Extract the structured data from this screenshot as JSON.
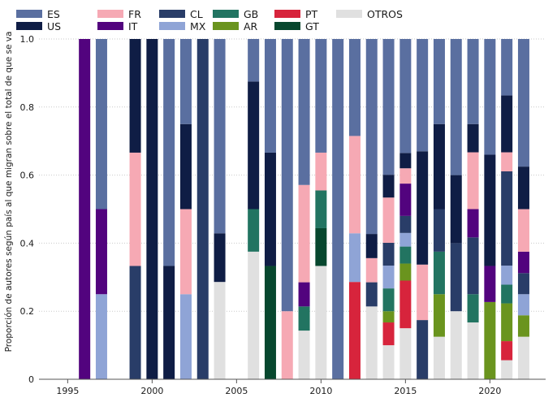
{
  "chart_data": {
    "type": "bar",
    "stacked": true,
    "orientation": "vertical",
    "ylabel": "Proporción de autores según país al que migran sobre el total de que se va",
    "xlabel": "",
    "xlim": [
      1993.3,
      2023.3
    ],
    "ylim": [
      0,
      1.0
    ],
    "x_ticks": [
      1995,
      2000,
      2005,
      2010,
      2015,
      2020
    ],
    "y_ticks": [
      0,
      0.2,
      0.4,
      0.6,
      0.8,
      1.0
    ],
    "y_tick_labels": [
      "0",
      "0.2",
      "0.4",
      "0.6",
      "0.8",
      "1.0"
    ],
    "grid": "horizontal dotted",
    "legend_position": "top",
    "legend": [
      {
        "key": "ES",
        "label": "ES",
        "color": "#5a6fa0"
      },
      {
        "key": "US",
        "label": "US",
        "color": "#0f1d45"
      },
      {
        "key": "FR",
        "label": "FR",
        "color": "#f6a9b4"
      },
      {
        "key": "IT",
        "label": "IT",
        "color": "#52037e"
      },
      {
        "key": "CL",
        "label": "CL",
        "color": "#293d68"
      },
      {
        "key": "MX",
        "label": "MX",
        "color": "#8fa4d6"
      },
      {
        "key": "GB",
        "label": "GB",
        "color": "#227461"
      },
      {
        "key": "AR",
        "label": "AR",
        "color": "#6a941e"
      },
      {
        "key": "PT",
        "label": "PT",
        "color": "#d7243c"
      },
      {
        "key": "GT",
        "label": "GT",
        "color": "#07472e"
      },
      {
        "key": "OTROS",
        "label": "OTROS",
        "color": "#e0e0e0"
      }
    ],
    "bars": [
      {
        "x": 1996,
        "segments": [
          [
            "IT",
            1.0
          ]
        ]
      },
      {
        "x": 1997,
        "segments": [
          [
            "MX",
            0.25
          ],
          [
            "IT",
            0.25
          ],
          [
            "ES",
            0.5
          ]
        ]
      },
      {
        "x": 1999,
        "segments": [
          [
            "CL",
            0.333
          ],
          [
            "FR",
            0.333
          ],
          [
            "US",
            0.334
          ]
        ]
      },
      {
        "x": 2000,
        "segments": [
          [
            "US",
            1.0
          ]
        ]
      },
      {
        "x": 2001,
        "segments": [
          [
            "US",
            0.333
          ],
          [
            "ES",
            0.667
          ]
        ]
      },
      {
        "x": 2002,
        "segments": [
          [
            "MX",
            0.25
          ],
          [
            "FR",
            0.25
          ],
          [
            "US",
            0.25
          ],
          [
            "ES",
            0.25
          ]
        ]
      },
      {
        "x": 2003,
        "segments": [
          [
            "CL",
            1.0
          ]
        ]
      },
      {
        "x": 2004,
        "segments": [
          [
            "OTROS",
            0.286
          ],
          [
            "US",
            0.143
          ],
          [
            "ES",
            0.571
          ]
        ]
      },
      {
        "x": 2006,
        "segments": [
          [
            "OTROS",
            0.375
          ],
          [
            "GB",
            0.125
          ],
          [
            "US",
            0.375
          ],
          [
            "ES",
            0.125
          ]
        ]
      },
      {
        "x": 2007,
        "segments": [
          [
            "GT",
            0.333
          ],
          [
            "US",
            0.333
          ],
          [
            "ES",
            0.334
          ]
        ]
      },
      {
        "x": 2008,
        "segments": [
          [
            "FR",
            0.2
          ],
          [
            "ES",
            0.8
          ]
        ]
      },
      {
        "x": 2009,
        "segments": [
          [
            "OTROS",
            0.143
          ],
          [
            "GB",
            0.071
          ],
          [
            "IT",
            0.071
          ],
          [
            "FR",
            0.286
          ],
          [
            "ES",
            0.429
          ]
        ]
      },
      {
        "x": 2010,
        "segments": [
          [
            "OTROS",
            0.333
          ],
          [
            "GT",
            0.111
          ],
          [
            "GB",
            0.111
          ],
          [
            "FR",
            0.111
          ],
          [
            "ES",
            0.334
          ]
        ]
      },
      {
        "x": 2011,
        "segments": [
          [
            "ES",
            1.0
          ]
        ]
      },
      {
        "x": 2012,
        "segments": [
          [
            "PT",
            0.286
          ],
          [
            "MX",
            0.143
          ],
          [
            "FR",
            0.286
          ],
          [
            "ES",
            0.285
          ]
        ]
      },
      {
        "x": 2013,
        "segments": [
          [
            "OTROS",
            0.214
          ],
          [
            "CL",
            0.071
          ],
          [
            "FR",
            0.071
          ],
          [
            "US",
            0.071
          ],
          [
            "ES",
            0.573
          ]
        ]
      },
      {
        "x": 2014,
        "segments": [
          [
            "OTROS",
            0.1
          ],
          [
            "PT",
            0.067
          ],
          [
            "AR",
            0.033
          ],
          [
            "GB",
            0.067
          ],
          [
            "MX",
            0.067
          ],
          [
            "CL",
            0.067
          ],
          [
            "FR",
            0.133
          ],
          [
            "US",
            0.067
          ],
          [
            "ES",
            0.399
          ]
        ]
      },
      {
        "x": 2015,
        "segments": [
          [
            "OTROS",
            0.15
          ],
          [
            "PT",
            0.14
          ],
          [
            "AR",
            0.05
          ],
          [
            "GB",
            0.05
          ],
          [
            "MX",
            0.04
          ],
          [
            "CL",
            0.05
          ],
          [
            "IT",
            0.095
          ],
          [
            "FR",
            0.045
          ],
          [
            "US",
            0.045
          ],
          [
            "ES",
            0.335
          ]
        ]
      },
      {
        "x": 2016,
        "segments": [
          [
            "CL",
            0.174
          ],
          [
            "FR",
            0.163
          ],
          [
            "US",
            0.333
          ],
          [
            "ES",
            0.33
          ]
        ]
      },
      {
        "x": 2017,
        "segments": [
          [
            "OTROS",
            0.125
          ],
          [
            "AR",
            0.125
          ],
          [
            "GB",
            0.125
          ],
          [
            "CL",
            0.125
          ],
          [
            "US",
            0.25
          ],
          [
            "ES",
            0.25
          ]
        ]
      },
      {
        "x": 2018,
        "segments": [
          [
            "OTROS",
            0.2
          ],
          [
            "CL",
            0.2
          ],
          [
            "US",
            0.2
          ],
          [
            "ES",
            0.4
          ]
        ]
      },
      {
        "x": 2019,
        "segments": [
          [
            "OTROS",
            0.167
          ],
          [
            "GB",
            0.083
          ],
          [
            "CL",
            0.167
          ],
          [
            "IT",
            0.083
          ],
          [
            "FR",
            0.167
          ],
          [
            "US",
            0.083
          ],
          [
            "ES",
            0.25
          ]
        ]
      },
      {
        "x": 2020,
        "segments": [
          [
            "AR",
            0.227
          ],
          [
            "IT",
            0.106
          ],
          [
            "US",
            0.327
          ],
          [
            "ES",
            0.34
          ]
        ]
      },
      {
        "x": 2021,
        "segments": [
          [
            "OTROS",
            0.056
          ],
          [
            "PT",
            0.056
          ],
          [
            "AR",
            0.111
          ],
          [
            "GB",
            0.055
          ],
          [
            "MX",
            0.056
          ],
          [
            "CL",
            0.277
          ],
          [
            "FR",
            0.056
          ],
          [
            "US",
            0.167
          ],
          [
            "ES",
            0.166
          ]
        ]
      },
      {
        "x": 2022,
        "segments": [
          [
            "OTROS",
            0.125
          ],
          [
            "AR",
            0.063
          ],
          [
            "MX",
            0.062
          ],
          [
            "CL",
            0.062
          ],
          [
            "IT",
            0.063
          ],
          [
            "FR",
            0.125
          ],
          [
            "US",
            0.125
          ],
          [
            "ES",
            0.375
          ]
        ]
      }
    ]
  }
}
